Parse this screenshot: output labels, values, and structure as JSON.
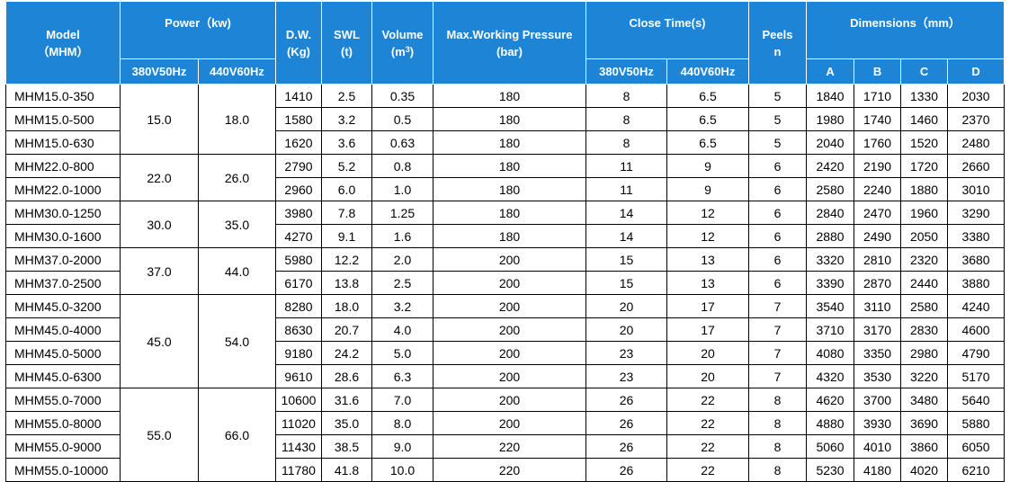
{
  "header": {
    "model": "Model",
    "model_sub": "（MHM）",
    "power": "Power（kw)",
    "power_380": "380V50Hz",
    "power_440": "440V60Hz",
    "dw": "D.W.",
    "dw_unit": "(Kg)",
    "swl": "SWL",
    "swl_unit": "(t)",
    "volume": "Volume",
    "volume_unit_pre": "(m",
    "volume_unit_sup": "3",
    "volume_unit_post": ")",
    "pressure": "Max.Working Pressure",
    "pressure_unit": "(bar)",
    "close_time": "Close Time(s)",
    "close_380": "380V50Hz",
    "close_440": "440V60Hz",
    "peels": "Peels",
    "peels_unit": "n",
    "dimensions": "Dimensions（mm）",
    "dim_a": "A",
    "dim_b": "B",
    "dim_c": "C",
    "dim_d": "D"
  },
  "power_groups": [
    {
      "p380": "15.0",
      "p440": "18.0"
    },
    {
      "p380": "22.0",
      "p440": "26.0"
    },
    {
      "p380": "30.0",
      "p440": "35.0"
    },
    {
      "p380": "37.0",
      "p440": "44.0"
    },
    {
      "p380": "45.0",
      "p440": "54.0"
    },
    {
      "p380": "55.0",
      "p440": "66.0"
    }
  ],
  "rows": [
    {
      "model": "MHM15.0-350",
      "dw": "1410",
      "swl": "2.5",
      "vol": "0.35",
      "press": "180",
      "c380": "8",
      "c440": "6.5",
      "peels": "5",
      "a": "1840",
      "b": "1710",
      "c": "1330",
      "d": "2030"
    },
    {
      "model": "MHM15.0-500",
      "dw": "1580",
      "swl": "3.2",
      "vol": "0.5",
      "press": "180",
      "c380": "8",
      "c440": "6.5",
      "peels": "5",
      "a": "1980",
      "b": "1740",
      "c": "1460",
      "d": "2370"
    },
    {
      "model": "MHM15.0-630",
      "dw": "1620",
      "swl": "3.6",
      "vol": "0.63",
      "press": "180",
      "c380": "8",
      "c440": "6.5",
      "peels": "5",
      "a": "2040",
      "b": "1760",
      "c": "1520",
      "d": "2480"
    },
    {
      "model": "MHM22.0-800",
      "dw": "2790",
      "swl": "5.2",
      "vol": "0.8",
      "press": "180",
      "c380": "11",
      "c440": "9",
      "peels": "6",
      "a": "2420",
      "b": "2190",
      "c": "1720",
      "d": "2660"
    },
    {
      "model": "MHM22.0-1000",
      "dw": "2960",
      "swl": "6.0",
      "vol": "1.0",
      "press": "180",
      "c380": "11",
      "c440": "9",
      "peels": "6",
      "a": "2580",
      "b": "2240",
      "c": "1880",
      "d": "3010"
    },
    {
      "model": "MHM30.0-1250",
      "dw": "3980",
      "swl": "7.8",
      "vol": "1.25",
      "press": "180",
      "c380": "14",
      "c440": "12",
      "peels": "6",
      "a": "2840",
      "b": "2470",
      "c": "1960",
      "d": "3290"
    },
    {
      "model": "MHM30.0-1600",
      "dw": "4270",
      "swl": "9.1",
      "vol": "1.6",
      "press": "180",
      "c380": "14",
      "c440": "12",
      "peels": "6",
      "a": "2880",
      "b": "2490",
      "c": "2050",
      "d": "3380"
    },
    {
      "model": "MHM37.0-2000",
      "dw": "5980",
      "swl": "12.2",
      "vol": "2.0",
      "press": "200",
      "c380": "15",
      "c440": "13",
      "peels": "6",
      "a": "3320",
      "b": "2810",
      "c": "2320",
      "d": "3680"
    },
    {
      "model": "MHM37.0-2500",
      "dw": "6170",
      "swl": "13.8",
      "vol": "2.5",
      "press": "200",
      "c380": "15",
      "c440": "13",
      "peels": "6",
      "a": "3390",
      "b": "2870",
      "c": "2440",
      "d": "3880"
    },
    {
      "model": "MHM45.0-3200",
      "dw": "8280",
      "swl": "18.0",
      "vol": "3.2",
      "press": "200",
      "c380": "20",
      "c440": "17",
      "peels": "7",
      "a": "3540",
      "b": "3110",
      "c": "2580",
      "d": "4240"
    },
    {
      "model": "MHM45.0-4000",
      "dw": "8630",
      "swl": "20.7",
      "vol": "4.0",
      "press": "200",
      "c380": "20",
      "c440": "17",
      "peels": "7",
      "a": "3710",
      "b": "3170",
      "c": "2830",
      "d": "4600"
    },
    {
      "model": "MHM45.0-5000",
      "dw": "9180",
      "swl": "24.2",
      "vol": "5.0",
      "press": "200",
      "c380": "23",
      "c440": "20",
      "peels": "7",
      "a": "4080",
      "b": "3350",
      "c": "2980",
      "d": "4790"
    },
    {
      "model": "MHM45.0-6300",
      "dw": "9610",
      "swl": "28.6",
      "vol": "6.3",
      "press": "200",
      "c380": "23",
      "c440": "20",
      "peels": "7",
      "a": "4320",
      "b": "3530",
      "c": "3220",
      "d": "5170"
    },
    {
      "model": "MHM55.0-7000",
      "dw": "10600",
      "swl": "31.6",
      "vol": "7.0",
      "press": "200",
      "c380": "26",
      "c440": "22",
      "peels": "8",
      "a": "4620",
      "b": "3700",
      "c": "3480",
      "d": "5640"
    },
    {
      "model": "MHM55.0-8000",
      "dw": "11020",
      "swl": "35.0",
      "vol": "8.0",
      "press": "200",
      "c380": "26",
      "c440": "22",
      "peels": "8",
      "a": "4880",
      "b": "3930",
      "c": "3690",
      "d": "5880"
    },
    {
      "model": "MHM55.0-9000",
      "dw": "11430",
      "swl": "38.5",
      "vol": "9.0",
      "press": "220",
      "c380": "26",
      "c440": "22",
      "peels": "8",
      "a": "5060",
      "b": "4010",
      "c": "3860",
      "d": "6050"
    },
    {
      "model": "MHM55.0-10000",
      "dw": "11780",
      "swl": "41.8",
      "vol": "10.0",
      "press": "220",
      "c380": "26",
      "c440": "22",
      "peels": "8",
      "a": "5230",
      "b": "4180",
      "c": "4020",
      "d": "6210"
    }
  ],
  "colors": {
    "header_bg": "#1e85d6",
    "header_text": "#ffffff",
    "grid": "#000000"
  }
}
